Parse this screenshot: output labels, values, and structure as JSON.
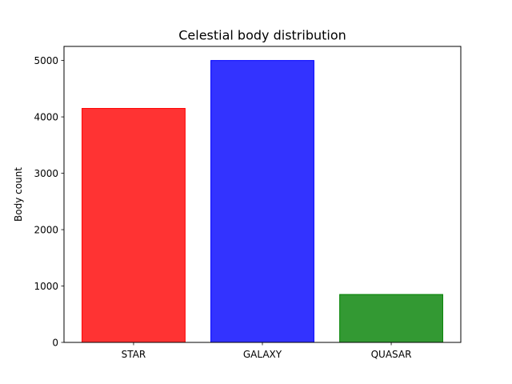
{
  "chart_data": {
    "type": "bar",
    "title": "Celestial body distribution",
    "xlabel": "",
    "ylabel": "Body count",
    "categories": [
      "STAR",
      "GALAXY",
      "QUASAR"
    ],
    "values": [
      4150,
      5000,
      850
    ],
    "colors": [
      "#ff3333",
      "#3333ff",
      "#339933"
    ],
    "edge_colors": [
      "#ff0000",
      "#0000ff",
      "#008000"
    ],
    "ylim": [
      0,
      5250
    ],
    "yticks": [
      0,
      1000,
      2000,
      3000,
      4000,
      5000
    ],
    "grid": false,
    "legend": "none"
  }
}
